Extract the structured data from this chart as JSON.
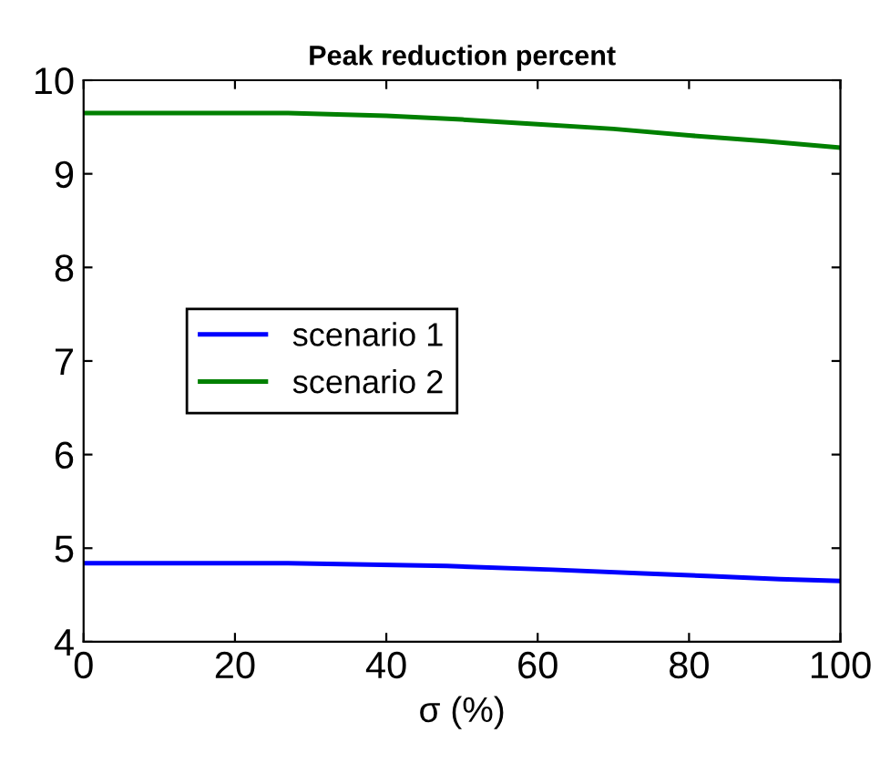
{
  "chart_data": {
    "type": "line",
    "title": "Peak reduction percent",
    "xlabel": "σ (%)",
    "series": [
      {
        "name": "scenario 1",
        "color": "#0000ff",
        "x": [
          0,
          27,
          48,
          62,
          74,
          83,
          92,
          100
        ],
        "values": [
          4.84,
          4.84,
          4.81,
          4.77,
          4.73,
          4.7,
          4.67,
          4.65
        ]
      },
      {
        "name": "scenario 2",
        "color": "#008000",
        "x": [
          0,
          27,
          40,
          50,
          60,
          70,
          80,
          90,
          100
        ],
        "values": [
          9.65,
          9.65,
          9.62,
          9.58,
          9.53,
          9.48,
          9.41,
          9.35,
          9.28
        ]
      }
    ],
    "xlim": [
      0,
      100
    ],
    "xticks": [
      0,
      20,
      40,
      60,
      80,
      100
    ],
    "ylim": [
      4,
      10
    ],
    "yticks": [
      4,
      5,
      6,
      7,
      8,
      9,
      10
    ],
    "grid": false,
    "legend": "center",
    "marker": "none",
    "line_style": "solid"
  }
}
